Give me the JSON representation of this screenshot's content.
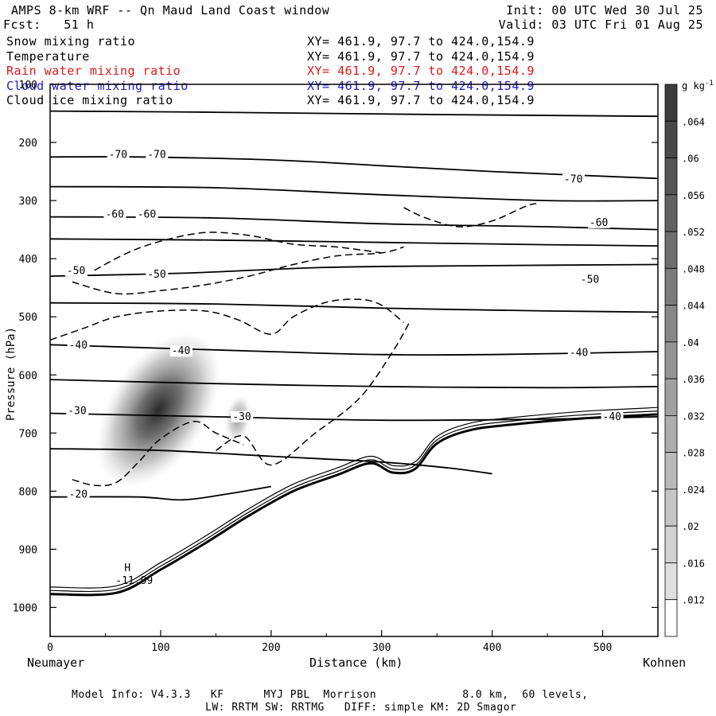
{
  "header": {
    "title": "AMPS 8-km WRF -- Qn Maud Land Coast window",
    "fcst": "Fcst:   51 h",
    "init": "Init: 00 UTC Wed 30 Jul 25",
    "valid": "Valid: 03 UTC Fri 01 Aug 25"
  },
  "fields": [
    {
      "name": "Snow mixing ratio",
      "xy": "XY= 461.9, 97.7 to 424.0,154.9",
      "color": "#000000"
    },
    {
      "name": "Temperature",
      "xy": "XY= 461.9, 97.7 to 424.0,154.9",
      "color": "#000000"
    },
    {
      "name": "Rain water mixing ratio",
      "xy": "XY= 461.9, 97.7 to 424.0,154.9",
      "color": "#e01818"
    },
    {
      "name": "Cloud water mixing ratio",
      "xy": "XY= 461.9, 97.7 to 424.0,154.9",
      "color": "#1a1ad0"
    },
    {
      "name": "Cloud ice mixing ratio",
      "xy": "XY= 461.9, 97.7 to 424.0,154.9",
      "color": "#000000"
    }
  ],
  "chart_data": {
    "type": "cross-section contour",
    "xlabel": "Distance (km)",
    "ylabel": "Pressure (hPa)",
    "xlim": [
      0,
      550
    ],
    "ylim": [
      1050,
      100
    ],
    "x_ticks": [
      "0",
      "100",
      "200",
      "300",
      "400",
      "500"
    ],
    "y_ticks": [
      "100",
      "200",
      "300",
      "400",
      "500",
      "600",
      "700",
      "800",
      "900",
      "1000"
    ],
    "left_end_label": "Neumayer",
    "right_end_label": "Kohnen",
    "colorbar": {
      "unit": "g kg",
      "unit_exp": "-1",
      "labels": [
        ".064",
        ".06",
        ".056",
        ".052",
        ".048",
        ".044",
        ".04",
        ".036",
        ".032",
        ".028",
        ".024",
        ".02",
        ".016",
        ".012"
      ]
    },
    "temperature_labels": [
      {
        "text": "-70",
        "x": 53,
        "p": 225
      },
      {
        "text": "-70",
        "x": 88,
        "p": 225
      },
      {
        "text": "-70",
        "x": 465,
        "p": 268
      },
      {
        "text": "-60",
        "x": 50,
        "p": 328
      },
      {
        "text": "-60",
        "x": 79,
        "p": 328
      },
      {
        "text": "-60",
        "x": 488,
        "p": 342
      },
      {
        "text": "-50",
        "x": 15,
        "p": 425
      },
      {
        "text": "-50",
        "x": 88,
        "p": 431
      },
      {
        "text": "-50",
        "x": 480,
        "p": 440
      },
      {
        "text": "-40",
        "x": 17,
        "p": 553
      },
      {
        "text": "-40",
        "x": 110,
        "p": 563
      },
      {
        "text": "-40",
        "x": 470,
        "p": 566
      },
      {
        "text": "-30",
        "x": 16,
        "p": 666
      },
      {
        "text": "-30",
        "x": 165,
        "p": 676
      },
      {
        "text": "-40",
        "x": 500,
        "p": 676
      },
      {
        "text": "-20",
        "x": 17,
        "p": 810
      }
    ],
    "high_marker": {
      "text": "H",
      "value": "-11.99",
      "x": 65,
      "p": 943
    },
    "temperature_isotherms": [
      {
        "x": [
          0,
          150,
          350,
          550
        ],
        "p": [
          146,
          148,
          152,
          155
        ]
      },
      {
        "x": [
          0,
          80,
          200,
          300,
          400,
          550
        ],
        "p": [
          225,
          225,
          230,
          240,
          250,
          262
        ]
      },
      {
        "x": [
          0,
          150,
          300,
          450,
          550
        ],
        "p": [
          276,
          278,
          290,
          300,
          300
        ]
      },
      {
        "x": [
          0,
          150,
          300,
          450,
          550
        ],
        "p": [
          328,
          330,
          340,
          345,
          350
        ]
      },
      {
        "x": [
          0,
          150,
          300,
          450,
          550
        ],
        "p": [
          366,
          368,
          372,
          376,
          378
        ]
      },
      {
        "x": [
          0,
          120,
          250,
          400,
          550
        ],
        "p": [
          430,
          425,
          415,
          412,
          410
        ]
      },
      {
        "x": [
          0,
          150,
          300,
          450,
          550
        ],
        "p": [
          476,
          478,
          485,
          490,
          492
        ]
      },
      {
        "x": [
          0,
          200,
          300,
          400,
          550
        ],
        "p": [
          548,
          560,
          565,
          565,
          560
        ]
      },
      {
        "x": [
          0,
          150,
          300,
          450,
          550
        ],
        "p": [
          608,
          615,
          620,
          622,
          620
        ]
      },
      {
        "x": [
          0,
          150,
          300,
          450,
          550
        ],
        "p": [
          666,
          672,
          678,
          676,
          672
        ]
      },
      {
        "x": [
          0,
          100,
          200,
          300,
          360,
          400
        ],
        "p": [
          727,
          730,
          740,
          750,
          760,
          770
        ]
      },
      {
        "x": [
          0,
          80,
          120,
          160,
          200
        ],
        "p": [
          810,
          810,
          815,
          805,
          792
        ]
      }
    ],
    "terrain": {
      "x": [
        0,
        60,
        100,
        140,
        180,
        220,
        260,
        290,
        310,
        330,
        350,
        380,
        420,
        480,
        550
      ],
      "p": [
        977,
        975,
        935,
        890,
        842,
        800,
        772,
        752,
        768,
        762,
        718,
        695,
        685,
        675,
        668
      ]
    },
    "cloud_ice_contour": [
      {
        "x": [
          20,
          40,
          60,
          80,
          100,
          130,
          150,
          175
        ],
        "p": [
          780,
          790,
          785,
          750,
          710,
          680,
          700,
          720
        ]
      },
      {
        "x": [
          150,
          175,
          200,
          240,
          280,
          310,
          325
        ],
        "p": [
          730,
          705,
          755,
          700,
          640,
          560,
          510
        ]
      },
      {
        "x": [
          0,
          30,
          60,
          100,
          140,
          170,
          200,
          220,
          250,
          280,
          300,
          320
        ],
        "p": [
          540,
          520,
          500,
          490,
          490,
          505,
          530,
          500,
          475,
          470,
          480,
          510
        ]
      },
      {
        "x": [
          20,
          60,
          100,
          140,
          180,
          220,
          260,
          300,
          320
        ],
        "p": [
          440,
          460,
          455,
          445,
          430,
          410,
          395,
          390,
          380
        ]
      },
      {
        "x": [
          40,
          70,
          100,
          140,
          180,
          220,
          260,
          300
        ],
        "p": [
          420,
          390,
          370,
          355,
          360,
          375,
          380,
          390
        ]
      },
      {
        "x": [
          320,
          340,
          370,
          400,
          430,
          440
        ],
        "p": [
          312,
          330,
          345,
          335,
          310,
          305
        ]
      }
    ],
    "snow_shading": [
      {
        "x": 98,
        "p": 660,
        "max": 0.062
      },
      {
        "x": 170,
        "p": 675,
        "max": 0.03
      }
    ]
  }
}
